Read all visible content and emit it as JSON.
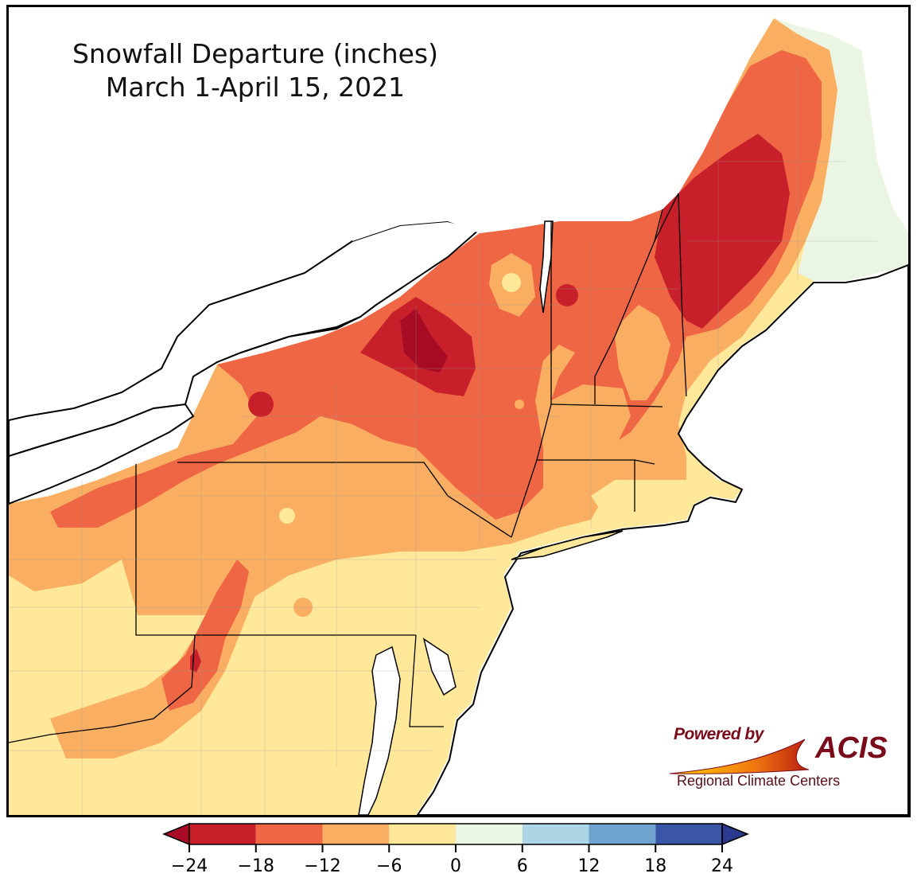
{
  "map": {
    "title_line1": "Snowfall Departure (inches)",
    "title_line2": "March 1-April 15, 2021",
    "colors": {
      "water": "#ffffff",
      "land_outside": "#ffffff",
      "bin_lt_-18": "#c8202a",
      "bin_-18_-12": "#ef6645",
      "bin_-12_-6": "#f9ae62",
      "bin_-6_0": "#ffe89a",
      "bin_0_6": "#ebf5e3",
      "bin_6_12": "#acd6e6",
      "bin_12_18": "#6ea3cf",
      "bin_gt_18": "#3b55a8",
      "darkest": "#a80c25"
    }
  },
  "legend": {
    "ticks": [
      "−24",
      "−18",
      "−12",
      "−6",
      "0",
      "6",
      "12",
      "18",
      "24"
    ],
    "colors": [
      "#c8202a",
      "#ef6645",
      "#f9ae62",
      "#ffe89a",
      "#ebf5e3",
      "#acd6e6",
      "#6ea3cf",
      "#3b55a8"
    ],
    "under_color": "#a80c25",
    "over_color": "#2a3a8c"
  },
  "credits": {
    "powered_by": "Powered by",
    "acis": "ACIS",
    "regional": "Regional Climate Centers"
  }
}
